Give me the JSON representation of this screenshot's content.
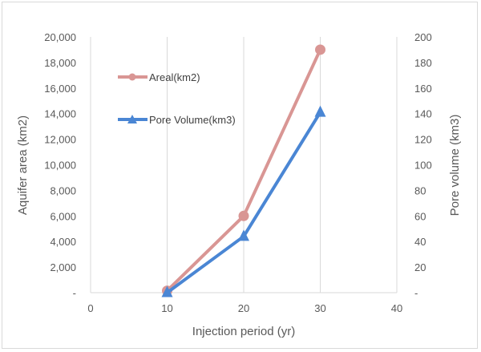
{
  "chart_data": {
    "type": "line",
    "xlabel": "Injection period (yr)",
    "ylabel": "Aquifer area (km2)",
    "y2label": "Pore volume (km3)",
    "xlim": [
      0,
      40
    ],
    "xticks": [
      0,
      10,
      20,
      30,
      40
    ],
    "xtick_labels": [
      "0",
      "10",
      "20",
      "30",
      "40"
    ],
    "ylim": [
      0,
      20000
    ],
    "yticks": [
      0,
      2000,
      4000,
      6000,
      8000,
      10000,
      12000,
      14000,
      16000,
      18000,
      20000
    ],
    "ytick_labels": [
      "-",
      "2,000",
      "4,000",
      "6,000",
      "8,000",
      "10,000",
      "12,000",
      "14,000",
      "16,000",
      "18,000",
      "20,000"
    ],
    "y2lim": [
      0,
      200
    ],
    "y2ticks": [
      0,
      20,
      40,
      60,
      80,
      100,
      120,
      140,
      160,
      180,
      200
    ],
    "y2tick_labels": [
      "-",
      "20",
      "40",
      "60",
      "80",
      "100",
      "120",
      "140",
      "160",
      "180",
      "200"
    ],
    "grid": "vertical",
    "legend_position": "top-left",
    "series": [
      {
        "name": "Areal(km2)",
        "axis": "left",
        "marker": "circle",
        "color": "#d99694",
        "x": [
          10,
          20,
          30
        ],
        "y": [
          150,
          6000,
          19000
        ]
      },
      {
        "name": "Pore Volume(km3)",
        "axis": "right",
        "marker": "triangle",
        "color": "#4a86d4",
        "x": [
          10,
          20,
          30
        ],
        "y": [
          0,
          44,
          141
        ]
      }
    ]
  }
}
